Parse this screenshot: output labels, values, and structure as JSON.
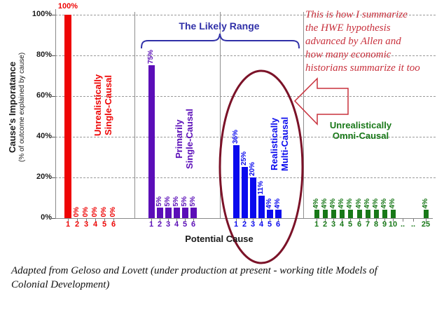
{
  "chart_data": {
    "type": "bar",
    "xlabel": "Potential Cause",
    "ylabel": "Cause's Imporatance",
    "ylabel_sub": "(% of outcome explained by cause)",
    "ylim": [
      0,
      100
    ],
    "ytick_labels": [
      "0%",
      "20%",
      "40%",
      "60%",
      "80%",
      "100%"
    ],
    "ytick_values": [
      0,
      20,
      40,
      60,
      80,
      100
    ],
    "grid": "horizontal dashed",
    "groups": [
      {
        "name": "Unrealistically Single-Causal",
        "name_lines": [
          "Unrealistically",
          "Single-Causal"
        ],
        "color": "#ee0505",
        "categories": [
          "1",
          "2",
          "3",
          "4",
          "5",
          "6"
        ],
        "values": [
          100,
          0,
          0,
          0,
          0,
          0
        ],
        "value_labels": [
          "100%",
          "0%",
          "0%",
          "0%",
          "0%",
          "0%"
        ]
      },
      {
        "name": "Primarily Single-Causal",
        "name_lines": [
          "Primarily",
          "Single-Causal"
        ],
        "color": "#5b0eb8",
        "categories": [
          "1",
          "2",
          "3",
          "4",
          "5",
          "6"
        ],
        "values": [
          75,
          5,
          5,
          5,
          5,
          5
        ],
        "value_labels": [
          "75%",
          "5%",
          "5%",
          "5%",
          "5%",
          "5%"
        ]
      },
      {
        "name": "Realistically Multi-Causal",
        "name_lines": [
          "Realistically",
          "Multi-Causal"
        ],
        "color": "#0a0aee",
        "categories": [
          "1",
          "2",
          "3",
          "4",
          "5",
          "6"
        ],
        "values": [
          36,
          25,
          20,
          11,
          4,
          4
        ],
        "value_labels": [
          "36%",
          "25%",
          "20%",
          "11%",
          "4%",
          "4%"
        ]
      },
      {
        "name": "Unrealistically Omni-Causal",
        "name_lines": [
          "Unrealistically",
          "Omni-Causal"
        ],
        "color": "#187818",
        "categories": [
          "1",
          "2",
          "3",
          "4",
          "5",
          "6",
          "7",
          "8",
          "9",
          "10",
          "..",
          "..",
          "25"
        ],
        "values": [
          4,
          4,
          4,
          4,
          4,
          4,
          4,
          4,
          4,
          4,
          null,
          null,
          4
        ],
        "value_labels": [
          "4%",
          "4%",
          "4%",
          "4%",
          "4%",
          "4%",
          "4%",
          "4%",
          "4%",
          "4%",
          "",
          "",
          "4%"
        ]
      }
    ],
    "annotations": {
      "likely_range_label": "The Likely Range",
      "note_lines": [
        "This is how I summarize",
        "the HWE hypothesis",
        "advanced by Allen and",
        "how many economic",
        "historians summarize it too"
      ],
      "note_color": "#c8303c",
      "ellipse_color": "#7b1228",
      "brace_color": "#3030a8"
    }
  },
  "caption_lines": [
    "Adapted from Geloso and Lovett (under production at present - working title Models of",
    "Colonial Development)"
  ]
}
